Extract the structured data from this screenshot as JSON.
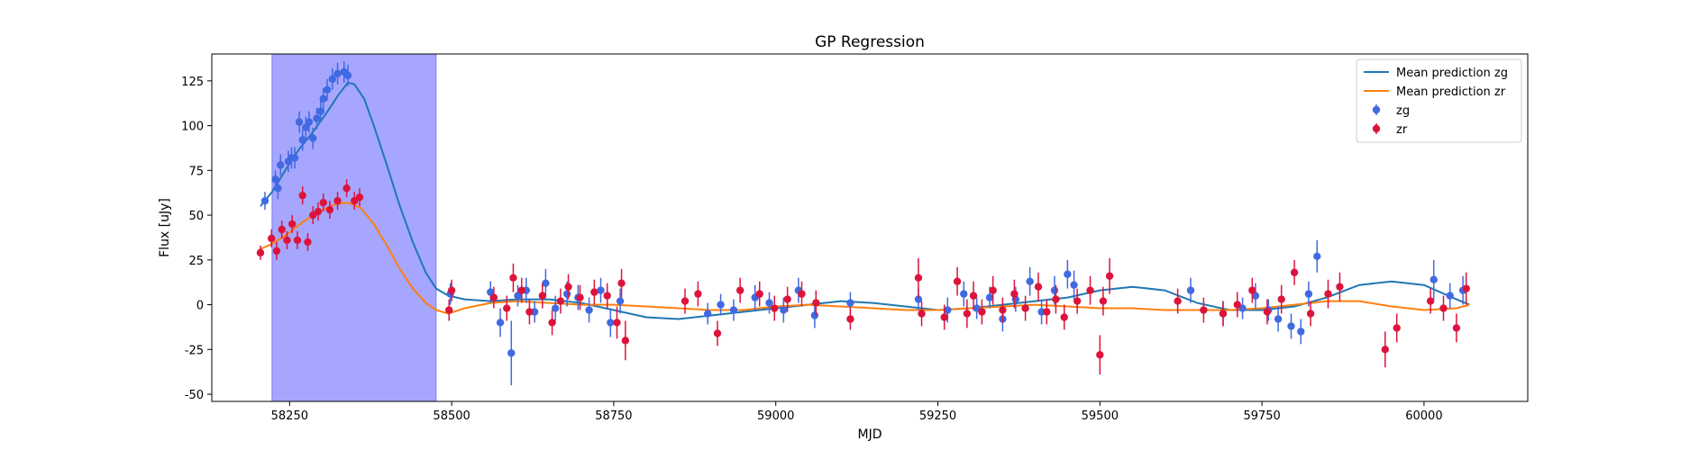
{
  "chart_data": {
    "type": "scatter",
    "title": "GP Regression",
    "xlabel": "MJD",
    "ylabel": "Flux [uJy]",
    "xlim": [
      58130,
      60160
    ],
    "ylim": [
      -54,
      140
    ],
    "xticks": [
      58250,
      58500,
      58750,
      59000,
      59250,
      59500,
      59750,
      60000
    ],
    "yticks": [
      -50,
      -25,
      0,
      25,
      50,
      75,
      100,
      125
    ],
    "legend_position": "top-right",
    "highlight_region": {
      "x0": 58223,
      "x1": 58476,
      "color": "#a6a6ff"
    },
    "series": [
      {
        "name": "Mean prediction zg",
        "kind": "line",
        "color": "#1f77b4",
        "x": [
          58205,
          58223,
          58245,
          58265,
          58285,
          58305,
          58325,
          58340,
          58350,
          58365,
          58380,
          58400,
          58420,
          58440,
          58460,
          58476,
          58495,
          58520,
          58560,
          58600,
          58650,
          58700,
          58750,
          58800,
          58850,
          58900,
          58950,
          59000,
          59050,
          59100,
          59150,
          59200,
          59250,
          59300,
          59350,
          59400,
          59450,
          59500,
          59550,
          59600,
          59650,
          59700,
          59750,
          59800,
          59850,
          59900,
          59950,
          60000,
          60050,
          60070
        ],
        "y": [
          55,
          63,
          76,
          87,
          96,
          106,
          117,
          124,
          123,
          115,
          100,
          78,
          55,
          35,
          18,
          9,
          5,
          3,
          2,
          3,
          3,
          1,
          -3,
          -7,
          -8,
          -6,
          -4,
          -2,
          0,
          2,
          1,
          -1,
          -3,
          -2,
          0,
          2,
          4,
          8,
          10,
          8,
          1,
          -3,
          -3,
          -1,
          4,
          11,
          13,
          11,
          3,
          0
        ]
      },
      {
        "name": "Mean prediction zr",
        "kind": "line",
        "color": "#ff7f0e",
        "x": [
          58205,
          58223,
          58245,
          58270,
          58295,
          58320,
          58340,
          58360,
          58380,
          58400,
          58420,
          58440,
          58460,
          58476,
          58495,
          58520,
          58560,
          58600,
          58650,
          58700,
          58750,
          58800,
          58850,
          58900,
          58950,
          59000,
          59050,
          59100,
          59150,
          59200,
          59250,
          59300,
          59350,
          59400,
          59450,
          59500,
          59550,
          59600,
          59650,
          59700,
          59750,
          59800,
          59850,
          59900,
          59950,
          60000,
          60050,
          60070
        ],
        "y": [
          31,
          34,
          39,
          46,
          52,
          56,
          57,
          54,
          45,
          33,
          20,
          9,
          1,
          -3,
          -5,
          -2,
          1,
          2,
          1,
          0,
          0,
          -1,
          -2,
          -3,
          -3,
          -1,
          0,
          -1,
          -2,
          -3,
          -3,
          -2,
          -1,
          0,
          -1,
          -2,
          -2,
          -3,
          -3,
          -3,
          -2,
          0,
          2,
          2,
          -1,
          -3,
          -2,
          0
        ]
      },
      {
        "name": "zg",
        "kind": "errorbar",
        "color": "#4169e1",
        "x": [
          58212,
          58228,
          58232,
          58236,
          58248,
          58253,
          58258,
          58265,
          58270,
          58275,
          58280,
          58286,
          58292,
          58298,
          58302,
          58308,
          58316,
          58324,
          58334,
          58340,
          58498,
          58560,
          58575,
          58592,
          58602,
          58615,
          58628,
          58645,
          58660,
          58678,
          58695,
          58712,
          58730,
          58745,
          58760,
          58895,
          58915,
          58935,
          58968,
          58990,
          59012,
          59035,
          59060,
          59115,
          59220,
          59265,
          59290,
          59310,
          59330,
          59350,
          59370,
          59392,
          59410,
          59430,
          59450,
          59460,
          59640,
          59690,
          59720,
          59740,
          59760,
          59775,
          59795,
          59810,
          59822,
          59835,
          60015,
          60040,
          60060
        ],
        "y": [
          58,
          70,
          65,
          78,
          80,
          82,
          82,
          102,
          92,
          99,
          102,
          93,
          104,
          108,
          115,
          120,
          126,
          129,
          130,
          128,
          6,
          7,
          -10,
          -27,
          5,
          8,
          -4,
          12,
          -2,
          6,
          4,
          -3,
          8,
          -10,
          2,
          -5,
          0,
          -3,
          4,
          1,
          -3,
          8,
          -6,
          1,
          3,
          -3,
          6,
          -2,
          4,
          -8,
          3,
          13,
          -4,
          8,
          17,
          11,
          8,
          -5,
          -2,
          5,
          -3,
          -8,
          -12,
          -15,
          6,
          27,
          14,
          5,
          8
        ],
        "yerr": [
          5,
          5,
          6,
          6,
          6,
          6,
          6,
          6,
          6,
          6,
          6,
          6,
          6,
          6,
          6,
          6,
          6,
          6,
          6,
          6,
          6,
          6,
          8,
          18,
          6,
          7,
          6,
          8,
          7,
          7,
          7,
          7,
          7,
          8,
          7,
          6,
          6,
          6,
          7,
          6,
          7,
          7,
          7,
          6,
          6,
          7,
          7,
          6,
          6,
          7,
          7,
          8,
          7,
          8,
          8,
          8,
          7,
          7,
          6,
          7,
          6,
          7,
          7,
          7,
          7,
          9,
          11,
          7,
          8
        ]
      },
      {
        "name": "zr",
        "kind": "errorbar",
        "color": "#dc143c",
        "x": [
          58205,
          58222,
          58230,
          58238,
          58246,
          58254,
          58262,
          58270,
          58278,
          58286,
          58294,
          58302,
          58312,
          58324,
          58338,
          58350,
          58358,
          58496,
          58500,
          58565,
          58585,
          58595,
          58608,
          58620,
          58640,
          58655,
          58668,
          58680,
          58698,
          58720,
          58740,
          58755,
          58762,
          58768,
          58860,
          58880,
          58910,
          58945,
          58975,
          58998,
          59018,
          59040,
          59062,
          59115,
          59220,
          59225,
          59260,
          59280,
          59295,
          59305,
          59318,
          59335,
          59350,
          59368,
          59385,
          59405,
          59418,
          59432,
          59445,
          59465,
          59485,
          59500,
          59505,
          59515,
          59620,
          59660,
          59690,
          59712,
          59735,
          59758,
          59780,
          59800,
          59825,
          59852,
          59870,
          59940,
          59958,
          60010,
          60030,
          60050,
          60065
        ],
        "y": [
          29,
          37,
          30,
          42,
          36,
          45,
          36,
          61,
          35,
          50,
          52,
          57,
          53,
          58,
          65,
          58,
          60,
          -3,
          8,
          4,
          -2,
          15,
          8,
          -4,
          5,
          -10,
          2,
          10,
          4,
          7,
          5,
          -10,
          12,
          -20,
          2,
          6,
          -16,
          8,
          6,
          -2,
          3,
          6,
          1,
          -8,
          15,
          -5,
          -7,
          13,
          -5,
          5,
          -4,
          8,
          -3,
          6,
          -2,
          10,
          -4,
          3,
          -7,
          2,
          8,
          -28,
          2,
          16,
          2,
          -3,
          -5,
          0,
          8,
          -4,
          3,
          18,
          -5,
          6,
          10,
          -25,
          -13,
          2,
          -2,
          -13,
          9
        ],
        "yerr": [
          4,
          5,
          5,
          5,
          5,
          5,
          5,
          5,
          5,
          5,
          5,
          5,
          5,
          5,
          5,
          5,
          5,
          6,
          6,
          6,
          7,
          8,
          7,
          7,
          7,
          7,
          7,
          7,
          7,
          7,
          7,
          9,
          8,
          11,
          7,
          7,
          7,
          7,
          7,
          7,
          7,
          7,
          7,
          6,
          11,
          7,
          7,
          8,
          8,
          8,
          7,
          8,
          7,
          8,
          7,
          8,
          7,
          8,
          7,
          7,
          8,
          11,
          8,
          10,
          7,
          7,
          7,
          7,
          7,
          7,
          8,
          7,
          7,
          8,
          8,
          10,
          8,
          7,
          7,
          8,
          9
        ]
      }
    ]
  }
}
